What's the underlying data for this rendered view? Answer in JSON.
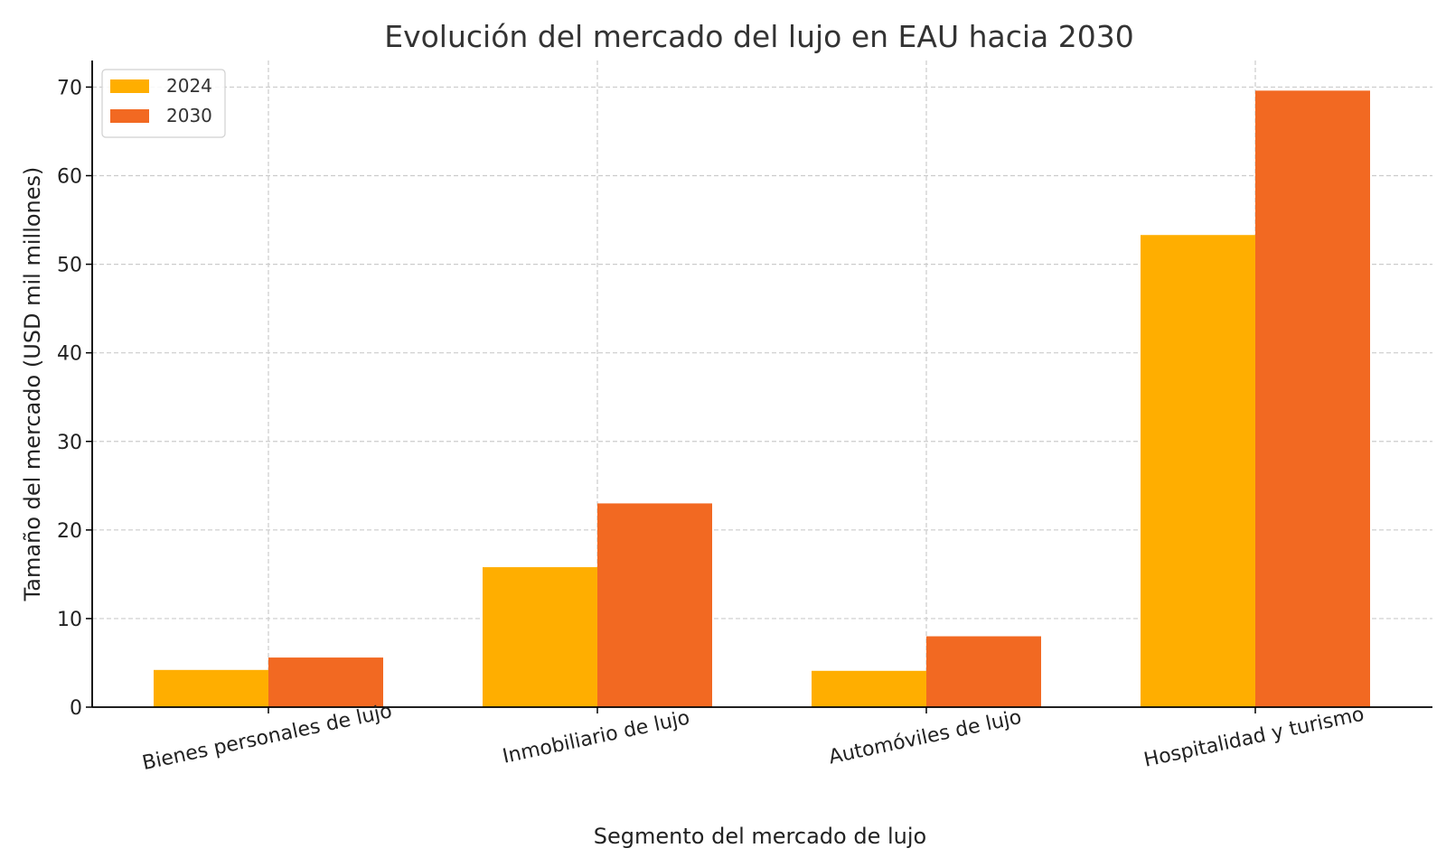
{
  "chart_data": {
    "type": "bar",
    "title": "Evolución del mercado del lujo en EAU hacia 2030",
    "xlabel": "Segmento del mercado de lujo",
    "ylabel": "Tamaño del mercado (USD mil millones)",
    "categories": [
      "Bienes personales de lujo",
      "Inmobiliario de lujo",
      "Automóviles de lujo",
      "Hospitalidad y turismo"
    ],
    "series": [
      {
        "name": "2024",
        "color": "#FFAE00",
        "values": [
          4.2,
          15.8,
          4.1,
          53.3
        ]
      },
      {
        "name": "2030",
        "color": "#F26922",
        "values": [
          5.6,
          23.0,
          8.0,
          69.6
        ]
      }
    ],
    "ylim": [
      0,
      73
    ],
    "yticks": [
      0,
      10,
      20,
      30,
      40,
      50,
      60,
      70
    ],
    "grid": true,
    "legend_position": "top-left"
  }
}
